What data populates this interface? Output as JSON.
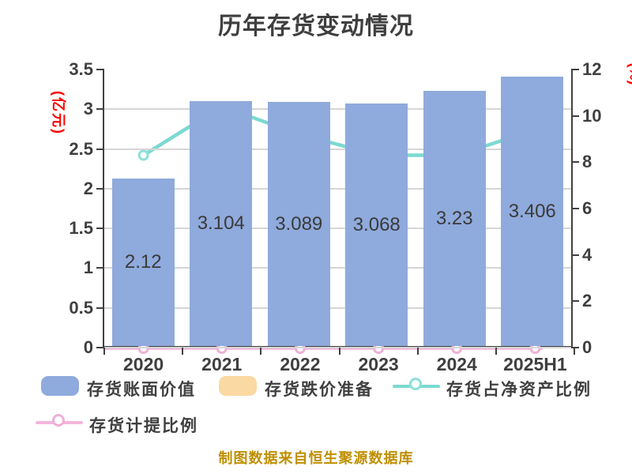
{
  "title": "历年存货变动情况",
  "footer": "制图数据来自恒生聚源数据库",
  "axes": {
    "left_unit_label": "(亿元)",
    "right_unit_label": "(%)",
    "left_ticks": [
      "3.5",
      "3",
      "2.5",
      "2",
      "1.5",
      "1",
      "0.5",
      "0"
    ],
    "right_ticks": [
      "12",
      "10",
      "8",
      "6",
      "4",
      "2",
      "0"
    ]
  },
  "legend": {
    "items": [
      {
        "label": "存货账面价值",
        "type": "bar",
        "color": "#8faadc"
      },
      {
        "label": "存货跌价准备",
        "type": "bar",
        "color": "#fad9a2"
      },
      {
        "label": "存货占净资产比例",
        "type": "line",
        "color": "#7cd9d1"
      },
      {
        "label": "存货计提比例",
        "type": "line",
        "color": "#f2b6db"
      }
    ]
  },
  "colors": {
    "bar_blue": "#8faadc",
    "bar_orange": "#fad9a2",
    "line_teal": "#7cd9d1",
    "line_teal_ring": "#8ce0d9",
    "line_pink": "#f2b6db",
    "line_pink_ring": "#efafd7",
    "axis_text": "#3f3f3f",
    "unit_label_red": "#ff0000",
    "footer_gold": "#bf8f00",
    "gridline": "#d6d6d6"
  },
  "chart_data": {
    "type": "bar",
    "title": "历年存货变动情况",
    "categories": [
      "2020",
      "2021",
      "2022",
      "2023",
      "2024",
      "2025H1"
    ],
    "series": [
      {
        "name": "存货账面价值",
        "type": "bar",
        "axis": "left",
        "color": "#8faadc",
        "values": [
          2.12,
          3.104,
          3.089,
          3.068,
          3.23,
          3.406
        ],
        "labels": [
          "2.12",
          "3.104",
          "3.089",
          "3.068",
          "3.23",
          "3.406"
        ]
      },
      {
        "name": "存货跌价准备",
        "type": "bar",
        "axis": "left",
        "color": "#fad9a2",
        "values": [
          0,
          0,
          0,
          0,
          0,
          0
        ]
      },
      {
        "name": "存货占净资产比例",
        "type": "line",
        "axis": "right",
        "color": "#7cd9d1",
        "values": [
          8.3,
          10.4,
          9.2,
          8.3,
          8.3,
          9.4
        ],
        "estimated_from_pixels": true
      },
      {
        "name": "存货计提比例",
        "type": "line",
        "axis": "right",
        "color": "#f2b6db",
        "values": [
          0,
          0,
          0,
          0,
          0,
          0
        ]
      }
    ],
    "left_axis": {
      "label": "(亿元)",
      "min": 0,
      "max": 3.5,
      "step": 0.5
    },
    "right_axis": {
      "label": "(%)",
      "min": 0,
      "max": 12,
      "step": 2
    },
    "grid": true,
    "legend_position": "bottom",
    "xlabel": "",
    "ylabel": "(亿元)"
  }
}
